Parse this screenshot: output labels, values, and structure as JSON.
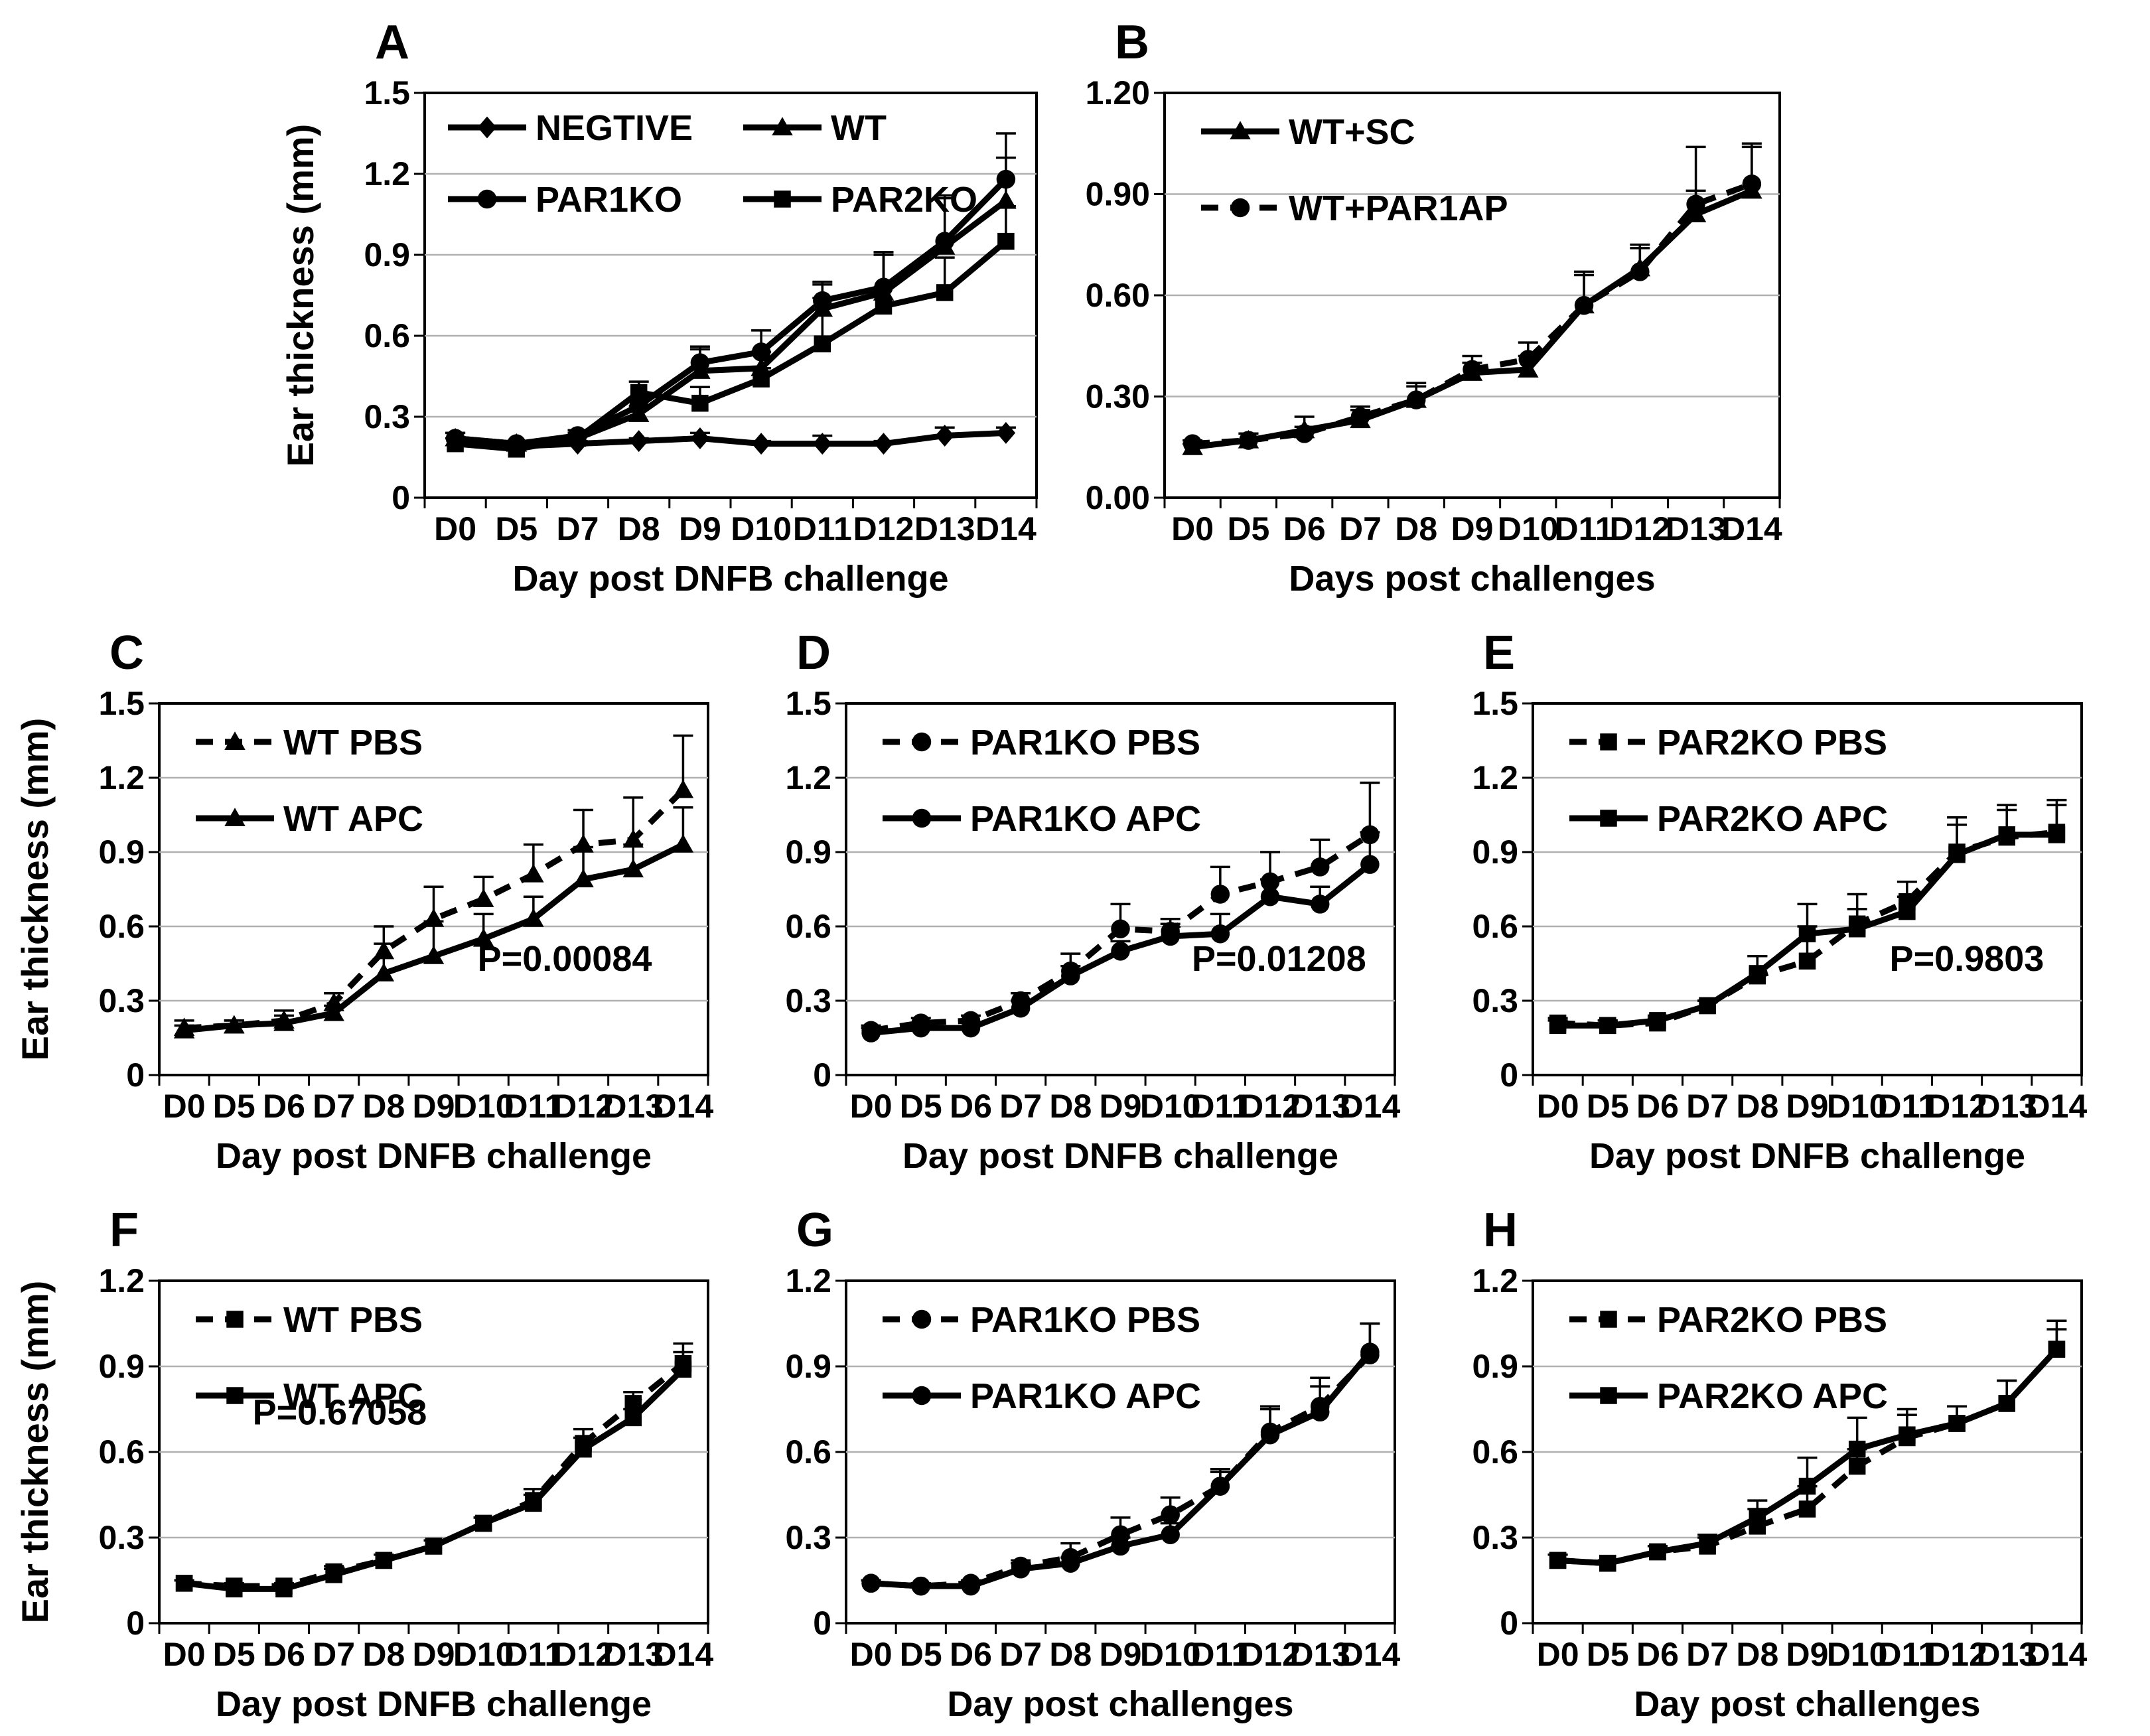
{
  "colors": {
    "ink": "#000000",
    "grid": "#b0b0b0",
    "background": "#ffffff"
  },
  "chart_data": [
    {
      "letter": "A",
      "type": "line",
      "xlabel": "Day post DNFB challenge",
      "ylabel": "Ear thickness (mm)",
      "categories": [
        "D0",
        "D5",
        "D7",
        "D8",
        "D9",
        "D10",
        "D11",
        "D12",
        "D13",
        "D14"
      ],
      "ymax": 1.5,
      "ytick_values": [
        0,
        0.3,
        0.6,
        0.9,
        1.2,
        1.5
      ],
      "ytick_labels": [
        "0",
        "0.3",
        "0.6",
        "0.9",
        "1.2",
        "1.5"
      ],
      "legend_cols": 2,
      "p_value": null,
      "series": [
        {
          "name": "NEGTIVE",
          "marker": "diamond",
          "dashed": false,
          "values": [
            0.21,
            0.19,
            0.2,
            0.21,
            0.22,
            0.2,
            0.2,
            0.2,
            0.23,
            0.24
          ],
          "errors": [
            0.01,
            0.01,
            0.01,
            0.01,
            0.02,
            0.01,
            0.03,
            0.01,
            0.03,
            0.02
          ]
        },
        {
          "name": "WT",
          "marker": "triangle",
          "dashed": false,
          "values": [
            0.22,
            0.2,
            0.22,
            0.31,
            0.47,
            0.48,
            0.7,
            0.76,
            0.93,
            1.1
          ],
          "errors": [
            0.02,
            0.01,
            0.03,
            0.03,
            0.08,
            0.06,
            0.09,
            0.14,
            0.18,
            0.16
          ]
        },
        {
          "name": "PAR1KO",
          "marker": "circle",
          "dashed": false,
          "values": [
            0.22,
            0.2,
            0.23,
            0.34,
            0.5,
            0.54,
            0.73,
            0.78,
            0.95,
            1.18
          ],
          "errors": [
            0.02,
            0.01,
            0.02,
            0.03,
            0.06,
            0.08,
            0.07,
            0.13,
            0.17,
            0.17
          ]
        },
        {
          "name": "PAR2KO",
          "marker": "square",
          "dashed": false,
          "values": [
            0.2,
            0.18,
            0.22,
            0.39,
            0.35,
            0.44,
            0.57,
            0.71,
            0.76,
            0.95
          ],
          "errors": [
            0.02,
            0.01,
            0.02,
            0.04,
            0.06,
            0.04,
            0.17,
            0.2,
            0.13,
            0.13
          ]
        }
      ]
    },
    {
      "letter": "B",
      "type": "line",
      "xlabel": "Days post challenges",
      "ylabel": null,
      "categories": [
        "D0",
        "D5",
        "D6",
        "D7",
        "D8",
        "D9",
        "D10",
        "D11",
        "D12",
        "D13",
        "D14"
      ],
      "ymax": 1.2,
      "ytick_values": [
        0,
        0.3,
        0.6,
        0.9,
        1.2
      ],
      "ytick_labels": [
        "0.00",
        "0.30",
        "0.60",
        "0.90",
        "1.20"
      ],
      "legend_cols": 1,
      "p_value": null,
      "series": [
        {
          "name": "WT+SC",
          "marker": "triangle",
          "dashed": false,
          "values": [
            0.15,
            0.17,
            0.2,
            0.23,
            0.29,
            0.37,
            0.38,
            0.57,
            0.68,
            0.84,
            0.91
          ],
          "errors": [
            0.01,
            0.02,
            0.04,
            0.03,
            0.04,
            0.03,
            0.04,
            0.1,
            0.06,
            0.07,
            0.13
          ]
        },
        {
          "name": "WT+PAR1AP",
          "marker": "circle",
          "dashed": true,
          "values": [
            0.16,
            0.17,
            0.19,
            0.24,
            0.29,
            0.38,
            0.41,
            0.57,
            0.67,
            0.87,
            0.93
          ],
          "errors": [
            0.01,
            0.02,
            0.02,
            0.03,
            0.05,
            0.04,
            0.05,
            0.09,
            0.08,
            0.17,
            0.12
          ]
        }
      ]
    },
    {
      "letter": "C",
      "type": "line",
      "xlabel": "Day post DNFB challenge",
      "ylabel": "Ear thickness (mm)",
      "categories": [
        "D0",
        "D5",
        "D6",
        "D7",
        "D8",
        "D9",
        "D10",
        "D11",
        "D12",
        "D13",
        "D14"
      ],
      "ymax": 1.5,
      "ytick_values": [
        0,
        0.3,
        0.6,
        0.9,
        1.2,
        1.5
      ],
      "ytick_labels": [
        "0",
        "0.3",
        "0.6",
        "0.9",
        "1.2",
        "1.5"
      ],
      "legend_cols": 1,
      "p_value": {
        "text": "P=0.00084",
        "fx": 0.58,
        "fy": 0.72
      },
      "series": [
        {
          "name": "WT PBS",
          "marker": "triangle",
          "dashed": true,
          "values": [
            0.19,
            0.2,
            0.22,
            0.29,
            0.5,
            0.63,
            0.71,
            0.81,
            0.93,
            0.95,
            1.15
          ],
          "errors": [
            0.03,
            0.02,
            0.04,
            0.04,
            0.1,
            0.13,
            0.09,
            0.12,
            0.14,
            0.17,
            0.22
          ]
        },
        {
          "name": "WT APC",
          "marker": "triangle",
          "dashed": false,
          "values": [
            0.18,
            0.2,
            0.21,
            0.25,
            0.41,
            0.48,
            0.55,
            0.63,
            0.79,
            0.83,
            0.93
          ],
          "errors": [
            0.02,
            0.02,
            0.03,
            0.03,
            0.12,
            0.14,
            0.1,
            0.09,
            0.13,
            0.1,
            0.15
          ]
        }
      ]
    },
    {
      "letter": "D",
      "type": "line",
      "xlabel": "Day post DNFB challenge",
      "ylabel": null,
      "categories": [
        "D0",
        "D5",
        "D6",
        "D7",
        "D8",
        "D9",
        "D10",
        "D11",
        "D12",
        "D13",
        "D14"
      ],
      "ymax": 1.5,
      "ytick_values": [
        0,
        0.3,
        0.6,
        0.9,
        1.2,
        1.5
      ],
      "ytick_labels": [
        "0",
        "0.3",
        "0.6",
        "0.9",
        "1.2",
        "1.5"
      ],
      "legend_cols": 1,
      "p_value": {
        "text": "P=0.01208",
        "fx": 0.63,
        "fy": 0.72
      },
      "series": [
        {
          "name": "PAR1KO PBS",
          "marker": "circle",
          "dashed": true,
          "values": [
            0.18,
            0.21,
            0.22,
            0.3,
            0.42,
            0.59,
            0.58,
            0.73,
            0.78,
            0.84,
            0.97
          ],
          "errors": [
            0.02,
            0.02,
            0.02,
            0.03,
            0.07,
            0.1,
            0.05,
            0.11,
            0.12,
            0.11,
            0.21
          ]
        },
        {
          "name": "PAR1KO APC",
          "marker": "circle",
          "dashed": false,
          "values": [
            0.17,
            0.19,
            0.19,
            0.27,
            0.4,
            0.5,
            0.56,
            0.57,
            0.72,
            0.69,
            0.85
          ],
          "errors": [
            0.02,
            0.02,
            0.02,
            0.03,
            0.04,
            0.04,
            0.05,
            0.08,
            0.07,
            0.07,
            0.13
          ]
        }
      ]
    },
    {
      "letter": "E",
      "type": "line",
      "xlabel": "Day post DNFB challenge",
      "ylabel": null,
      "categories": [
        "D0",
        "D5",
        "D6",
        "D7",
        "D8",
        "D9",
        "D10",
        "D11",
        "D12",
        "D13",
        "D14"
      ],
      "ymax": 1.5,
      "ytick_values": [
        0,
        0.3,
        0.6,
        0.9,
        1.2,
        1.5
      ],
      "ytick_labels": [
        "0",
        "0.3",
        "0.6",
        "0.9",
        "1.2",
        "1.5"
      ],
      "legend_cols": 1,
      "p_value": {
        "text": "P=0.9803",
        "fx": 0.65,
        "fy": 0.72
      },
      "series": [
        {
          "name": "PAR2KO PBS",
          "marker": "square",
          "dashed": true,
          "values": [
            0.21,
            0.2,
            0.21,
            0.28,
            0.4,
            0.46,
            0.61,
            0.7,
            0.9,
            0.96,
            0.98
          ],
          "errors": [
            0.02,
            0.02,
            0.02,
            0.02,
            0.08,
            0.14,
            0.12,
            0.08,
            0.14,
            0.13,
            0.13
          ]
        },
        {
          "name": "PAR2KO APC",
          "marker": "square",
          "dashed": false,
          "values": [
            0.2,
            0.2,
            0.22,
            0.28,
            0.41,
            0.57,
            0.59,
            0.66,
            0.89,
            0.97,
            0.97
          ],
          "errors": [
            0.02,
            0.02,
            0.02,
            0.02,
            0.07,
            0.12,
            0.08,
            0.06,
            0.12,
            0.1,
            0.12
          ]
        }
      ]
    },
    {
      "letter": "F",
      "type": "line",
      "xlabel": "Day post DNFB challenge",
      "ylabel": "Ear thickness (mm)",
      "categories": [
        "D0",
        "D5",
        "D6",
        "D7",
        "D8",
        "D9",
        "D10",
        "D11",
        "D12",
        "D13",
        "D14"
      ],
      "ymax": 1.2,
      "ytick_values": [
        0,
        0.3,
        0.6,
        0.9,
        1.2
      ],
      "ytick_labels": [
        "0",
        "0.3",
        "0.6",
        "0.9",
        "1.2"
      ],
      "legend_cols": 1,
      "p_value": {
        "text": "P=0.67058",
        "fx": 0.17,
        "fy": 0.42
      },
      "series": [
        {
          "name": "WT PBS",
          "marker": "square",
          "dashed": true,
          "values": [
            0.14,
            0.13,
            0.13,
            0.18,
            0.22,
            0.27,
            0.35,
            0.43,
            0.63,
            0.77,
            0.91
          ],
          "errors": [
            0.01,
            0.01,
            0.01,
            0.02,
            0.02,
            0.02,
            0.02,
            0.04,
            0.05,
            0.04,
            0.07
          ]
        },
        {
          "name": "WT APC",
          "marker": "square",
          "dashed": false,
          "values": [
            0.14,
            0.12,
            0.12,
            0.17,
            0.22,
            0.27,
            0.35,
            0.42,
            0.61,
            0.72,
            0.89
          ],
          "errors": [
            0.01,
            0.01,
            0.01,
            0.02,
            0.02,
            0.02,
            0.02,
            0.03,
            0.04,
            0.03,
            0.06
          ]
        }
      ]
    },
    {
      "letter": "G",
      "type": "line",
      "xlabel": "Day post challenges",
      "ylabel": null,
      "categories": [
        "D0",
        "D5",
        "D6",
        "D7",
        "D8",
        "D9",
        "D10",
        "D11",
        "D12",
        "D13",
        "D14"
      ],
      "ymax": 1.2,
      "ytick_values": [
        0,
        0.3,
        0.6,
        0.9,
        1.2
      ],
      "ytick_labels": [
        "0",
        "0.3",
        "0.6",
        "0.9",
        "1.2"
      ],
      "legend_cols": 1,
      "p_value": null,
      "series": [
        {
          "name": "PAR1KO PBS",
          "marker": "circle",
          "dashed": true,
          "values": [
            0.14,
            0.13,
            0.14,
            0.2,
            0.23,
            0.31,
            0.38,
            0.48,
            0.67,
            0.76,
            0.94
          ],
          "errors": [
            0.01,
            0.01,
            0.01,
            0.02,
            0.05,
            0.06,
            0.06,
            0.06,
            0.09,
            0.1,
            0.11
          ]
        },
        {
          "name": "PAR1KO APC",
          "marker": "circle",
          "dashed": false,
          "values": [
            0.14,
            0.13,
            0.13,
            0.19,
            0.21,
            0.27,
            0.31,
            0.48,
            0.66,
            0.74,
            0.95
          ],
          "errors": [
            0.01,
            0.01,
            0.01,
            0.02,
            0.02,
            0.03,
            0.04,
            0.05,
            0.09,
            0.09,
            0.1
          ]
        }
      ]
    },
    {
      "letter": "H",
      "type": "line",
      "xlabel": "Day post challenges",
      "ylabel": null,
      "categories": [
        "D0",
        "D5",
        "D6",
        "D7",
        "D8",
        "D9",
        "D10",
        "D11",
        "D12",
        "D13",
        "D14"
      ],
      "ymax": 1.2,
      "ytick_values": [
        0,
        0.3,
        0.6,
        0.9,
        1.2
      ],
      "ytick_labels": [
        "0",
        "0.3",
        "0.6",
        "0.9",
        "1.2"
      ],
      "legend_cols": 1,
      "p_value": null,
      "series": [
        {
          "name": "PAR2KO PBS",
          "marker": "square",
          "dashed": true,
          "values": [
            0.22,
            0.21,
            0.25,
            0.27,
            0.34,
            0.4,
            0.55,
            0.65,
            0.7,
            0.77,
            0.96
          ],
          "errors": [
            0.02,
            0.01,
            0.02,
            0.03,
            0.06,
            0.08,
            0.06,
            0.08,
            0.06,
            0.08,
            0.1
          ]
        },
        {
          "name": "PAR2KO APC",
          "marker": "square",
          "dashed": false,
          "values": [
            0.22,
            0.21,
            0.25,
            0.28,
            0.37,
            0.48,
            0.61,
            0.66,
            0.7,
            0.77,
            0.96
          ],
          "errors": [
            0.02,
            0.01,
            0.02,
            0.03,
            0.06,
            0.1,
            0.11,
            0.09,
            0.06,
            0.08,
            0.07
          ]
        }
      ]
    }
  ]
}
